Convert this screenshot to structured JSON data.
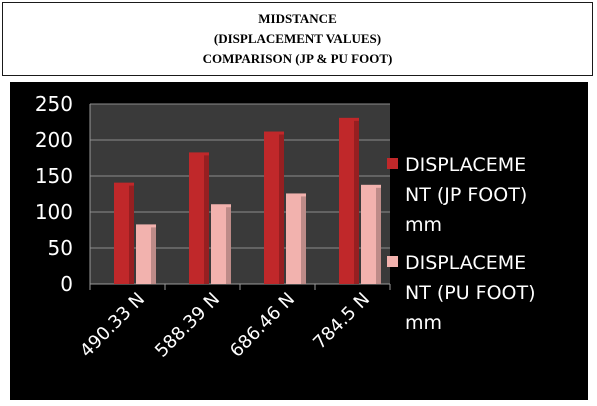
{
  "title_lines": [
    "MIDSTANCE",
    "(DISPLACEMENT VALUES)",
    "COMPARISON (JP & PU FOOT)"
  ],
  "chart_data": {
    "type": "bar",
    "categories": [
      "490.33 N",
      "588.39 N",
      "686.46 N",
      "784.5 N"
    ],
    "series": [
      {
        "name": "DISPLACEMENT (JP FOOT) mm",
        "label_lines": [
          "DISPLACEME",
          "NT (JP FOOT)",
          "mm"
        ],
        "values": [
          138,
          180,
          209,
          228
        ],
        "color": "#c0282a"
      },
      {
        "name": "DISPLACEMENT (PU FOOT) mm",
        "label_lines": [
          "DISPLACEME",
          "NT (PU FOOT)",
          "mm"
        ],
        "values": [
          80,
          108,
          123,
          135
        ],
        "color": "#f2b2ae"
      }
    ],
    "yticks": [
      0,
      50,
      100,
      150,
      200,
      250
    ],
    "ylim": [
      0,
      250
    ],
    "legend_position": "right",
    "plot_background": "#3a3a3a"
  }
}
